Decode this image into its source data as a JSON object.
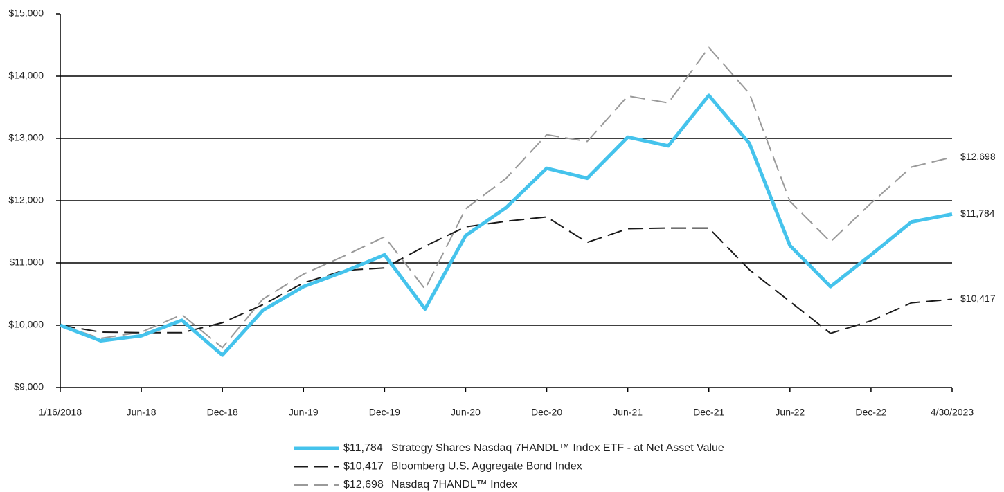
{
  "chart_data": {
    "type": "line",
    "categories": [
      "1/16/2018",
      null,
      "Jun-18",
      null,
      "Dec-18",
      null,
      "Jun-19",
      null,
      "Dec-19",
      null,
      "Jun-20",
      null,
      "Dec-20",
      null,
      "Jun-21",
      null,
      "Dec-21",
      null,
      "Jun-22",
      null,
      "Dec-22",
      null,
      "4/30/2023"
    ],
    "ylim": [
      9000,
      15000
    ],
    "yticks": [
      {
        "value": 9000,
        "label": "$9,000"
      },
      {
        "value": 10000,
        "label": "$10,000"
      },
      {
        "value": 11000,
        "label": "$11,000"
      },
      {
        "value": 12000,
        "label": "$12,000"
      },
      {
        "value": 13000,
        "label": "$13,000"
      },
      {
        "value": 14000,
        "label": "$14,000"
      },
      {
        "value": 15000,
        "label": "$15,000"
      }
    ],
    "grid": true,
    "series": [
      {
        "name": "Strategy Shares Nasdaq 7HANDL™ Index ETF - at Net Asset Value",
        "color": "#45c3ec",
        "style": "solid",
        "values": [
          10000,
          9750,
          9830,
          10080,
          9520,
          10240,
          10620,
          10860,
          11130,
          10260,
          11440,
          11890,
          12520,
          12360,
          13020,
          12880,
          13690,
          12920,
          11280,
          10620,
          11130,
          11660,
          11784
        ],
        "value_labels": [
          null,
          null,
          null,
          null,
          null,
          null,
          null,
          null,
          null,
          null,
          null,
          null,
          null,
          null,
          null,
          null,
          null,
          null,
          null,
          null,
          null,
          null,
          "$11,784"
        ]
      },
      {
        "name": "Bloomberg U.S. Aggregate Bond Index",
        "color": "#1a1a1a",
        "style": "dashed",
        "values": [
          10000,
          9890,
          9880,
          9880,
          10040,
          10330,
          10680,
          10880,
          10920,
          11270,
          11580,
          11670,
          11740,
          11330,
          11550,
          11560,
          11560,
          10890,
          10380,
          9870,
          10070,
          10360,
          10417
        ],
        "value_labels": [
          null,
          null,
          null,
          null,
          null,
          null,
          null,
          null,
          null,
          null,
          null,
          null,
          null,
          null,
          null,
          null,
          null,
          null,
          null,
          null,
          null,
          null,
          "$10,417"
        ]
      },
      {
        "name": "Nasdaq 7HANDL™ Index",
        "color": "#9a9a9a",
        "style": "dashed",
        "values": [
          10000,
          9790,
          9890,
          10170,
          9640,
          10420,
          10820,
          11110,
          11420,
          10580,
          11870,
          12360,
          13060,
          12950,
          13680,
          13570,
          14460,
          13720,
          11990,
          11340,
          11960,
          12540,
          12698
        ],
        "value_labels": [
          null,
          null,
          null,
          null,
          null,
          null,
          null,
          null,
          null,
          null,
          null,
          null,
          null,
          null,
          null,
          null,
          null,
          null,
          null,
          null,
          null,
          null,
          "$12,698"
        ]
      }
    ]
  }
}
